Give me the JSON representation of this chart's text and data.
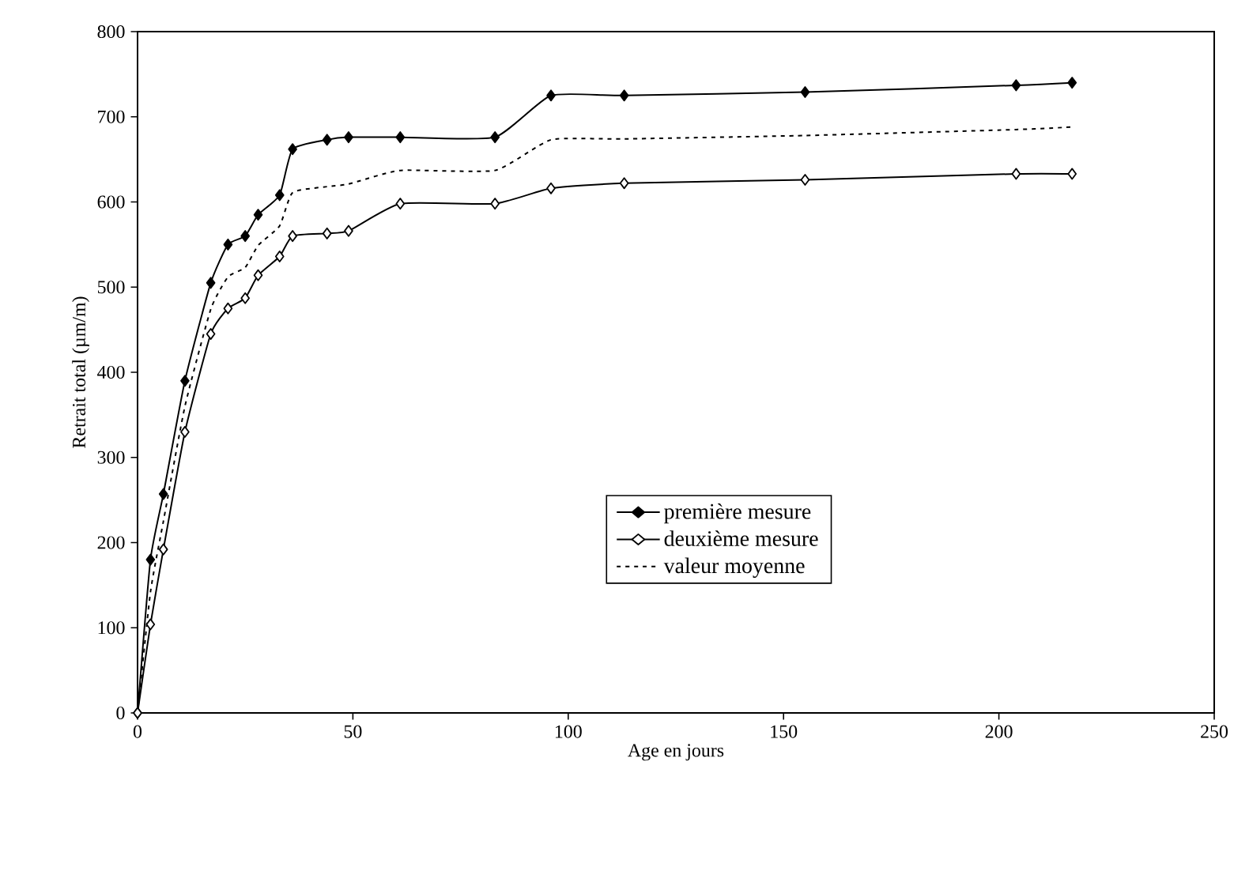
{
  "chart_data": {
    "type": "line",
    "xlabel": "Age en jours",
    "ylabel": "Retrait total (µm/m)",
    "xlim": [
      0,
      250
    ],
    "ylim": [
      0,
      800
    ],
    "xticks": [
      0,
      50,
      100,
      150,
      200,
      250
    ],
    "yticks": [
      0,
      100,
      200,
      300,
      400,
      500,
      600,
      700,
      800
    ],
    "grid": false,
    "legend": "bottom right",
    "line_style": "solid",
    "x": [
      0,
      3,
      6,
      11,
      17,
      21,
      25,
      28,
      33,
      36,
      44,
      49,
      61,
      83,
      96,
      113,
      155,
      204,
      217
    ],
    "series": [
      {
        "name": "première mesure",
        "color": "#000000",
        "marker": "diamond",
        "values": [
          0,
          180,
          257,
          390,
          505,
          550,
          560,
          585,
          608,
          662,
          673,
          676,
          676,
          676,
          725,
          725,
          729,
          737,
          740
        ]
      },
      {
        "name": "deuxième mesure",
        "color": "#000000",
        "marker": "diamond",
        "values": [
          0,
          104,
          192,
          330,
          445,
          475,
          487,
          514,
          536,
          560,
          563,
          566,
          598,
          598,
          616,
          622,
          626,
          633,
          633
        ]
      },
      {
        "name": "valeur moyenne",
        "color": "#000000",
        "marker": "none",
        "line_style": "dotted",
        "values": [
          0,
          142,
          225,
          360,
          474,
          512,
          523,
          549,
          572,
          611,
          618,
          621,
          637,
          637,
          673,
          674,
          678,
          685,
          688
        ]
      }
    ]
  }
}
